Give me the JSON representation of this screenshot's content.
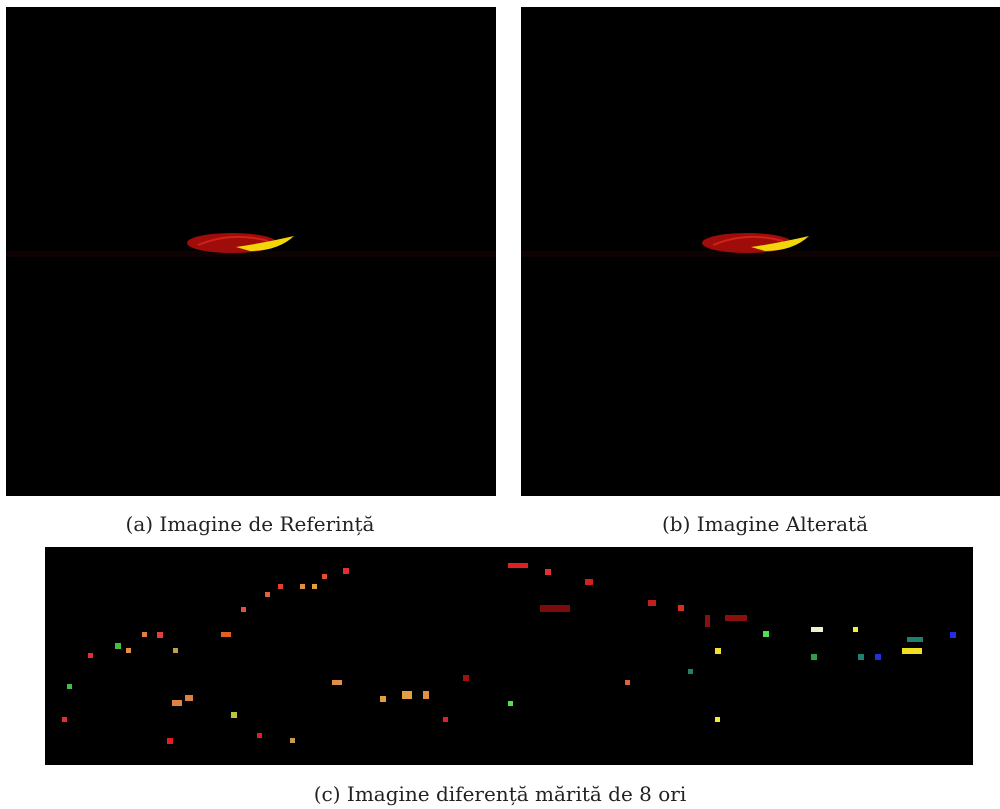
{
  "figure": {
    "panels": [
      {
        "caption": "(a) Imagine de Referință"
      },
      {
        "caption": "(b) Imagine Alterată"
      },
      {
        "caption": "(c) Imagine diferență mărită de 8 ori"
      }
    ]
  }
}
